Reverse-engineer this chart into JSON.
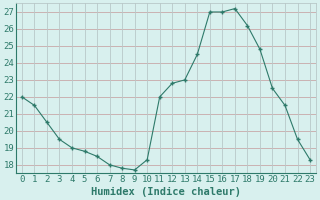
{
  "x": [
    0,
    1,
    2,
    3,
    4,
    5,
    6,
    7,
    8,
    9,
    10,
    11,
    12,
    13,
    14,
    15,
    16,
    17,
    18,
    19,
    20,
    21,
    22,
    23
  ],
  "y": [
    22.0,
    21.5,
    20.5,
    19.5,
    19.0,
    18.8,
    18.5,
    18.0,
    17.8,
    17.7,
    18.3,
    22.0,
    22.8,
    23.0,
    24.5,
    27.0,
    27.0,
    27.2,
    26.2,
    24.8,
    22.5,
    21.5,
    19.5,
    18.3
  ],
  "xlabel": "Humidex (Indice chaleur)",
  "line_color": "#2e7a6a",
  "marker": "P",
  "marker_size": 2.5,
  "bg_color": "#d8f0ee",
  "hgrid_color": "#c8a8a8",
  "vgrid_color": "#b8c8c8",
  "ylim": [
    17.5,
    27.5
  ],
  "yticks": [
    18,
    19,
    20,
    21,
    22,
    23,
    24,
    25,
    26,
    27
  ],
  "xticks": [
    0,
    1,
    2,
    3,
    4,
    5,
    6,
    7,
    8,
    9,
    10,
    11,
    12,
    13,
    14,
    15,
    16,
    17,
    18,
    19,
    20,
    21,
    22,
    23
  ],
  "tick_color": "#2e7a6a",
  "label_color": "#2e7a6a",
  "xlabel_fontsize": 7.5,
  "tick_fontsize": 6.5,
  "xlim": [
    -0.5,
    23.5
  ]
}
